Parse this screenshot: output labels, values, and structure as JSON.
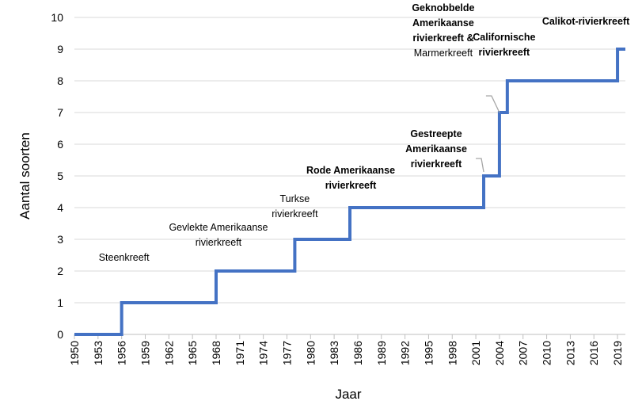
{
  "chart_data": {
    "type": "line",
    "step": true,
    "xlabel": "Jaar",
    "ylabel": "Aantal soorten",
    "xlim": [
      1950,
      2020
    ],
    "ylim": [
      0,
      10
    ],
    "x_ticks": [
      "1950",
      "1953",
      "1956",
      "1959",
      "1962",
      "1965",
      "1968",
      "1971",
      "1974",
      "1977",
      "1980",
      "1983",
      "1986",
      "1989",
      "1992",
      "1995",
      "1998",
      "2001",
      "2004",
      "2007",
      "2010",
      "2013",
      "2016",
      "2019"
    ],
    "y_ticks": [
      "0",
      "1",
      "2",
      "3",
      "4",
      "5",
      "6",
      "7",
      "8",
      "9",
      "10"
    ],
    "grid": "horizontal",
    "series": [
      {
        "color": "#4472C4",
        "points": [
          {
            "x": 1950,
            "y": 0
          },
          {
            "x": 1956,
            "y": 1
          },
          {
            "x": 1968,
            "y": 2
          },
          {
            "x": 1978,
            "y": 3
          },
          {
            "x": 1985,
            "y": 4
          },
          {
            "x": 2002,
            "y": 5
          },
          {
            "x": 2004,
            "y": 7
          },
          {
            "x": 2005,
            "y": 8
          },
          {
            "x": 2019,
            "y": 9
          },
          {
            "x": 2020,
            "y": 9
          }
        ]
      }
    ],
    "annotations": [
      {
        "lines": [
          "Steenkreeft"
        ],
        "bold": false,
        "x": 1956,
        "y": 1
      },
      {
        "lines": [
          "Gevlekte Amerikaanse",
          "rivierkreeft"
        ],
        "bold": false,
        "x": 1968,
        "y": 2
      },
      {
        "lines": [
          "Turkse",
          "rivierkreeft"
        ],
        "bold": false,
        "x": 1978,
        "y": 3
      },
      {
        "lines": [
          "Rode Amerikaanse",
          "rivierkreeft"
        ],
        "bold": true,
        "x": 1985,
        "y": 4
      },
      {
        "lines": [
          "Gestreepte",
          "Amerikaanse",
          "rivierkreeft"
        ],
        "bold": true,
        "x": 2002,
        "y": 5
      },
      {
        "lines": [
          "Geknobbelde",
          "Amerikaanse",
          "rivierkreeft &",
          "Marmerkreeft"
        ],
        "bold_lines": [
          true,
          true,
          true,
          false
        ],
        "x": 2004,
        "y": 7
      },
      {
        "lines": [
          "Californische",
          "rivierkreeft"
        ],
        "bold": true,
        "x": 2005,
        "y": 8
      },
      {
        "lines": [
          "Calikot-rivierkreeft"
        ],
        "bold": true,
        "x": 2019,
        "y": 9
      }
    ]
  }
}
